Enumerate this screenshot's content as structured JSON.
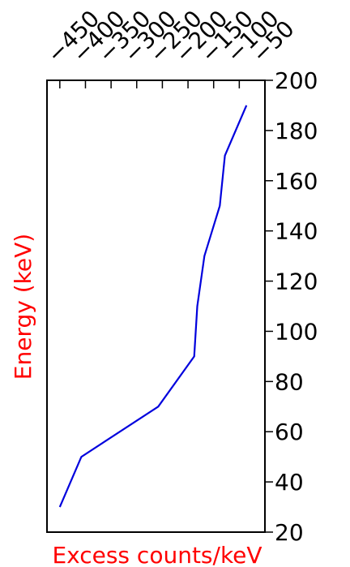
{
  "chart_data": {
    "type": "line",
    "xlabel": "Excess counts/keV",
    "ylabel": "Energy (keV)",
    "label_color": "#ff0000",
    "line_color": "#0000dd",
    "xlim": [
      -475,
      -50
    ],
    "ylim": [
      20,
      200
    ],
    "x_ticks": [
      "−450",
      "−400",
      "−350",
      "−300",
      "−250",
      "−200",
      "−150",
      "−100",
      "−50"
    ],
    "x_tick_values": [
      -450,
      -400,
      -350,
      -300,
      -250,
      -200,
      -150,
      -100,
      -50
    ],
    "y_ticks": [
      "200",
      "180",
      "160",
      "140",
      "120",
      "100",
      "80",
      "60",
      "40",
      "20"
    ],
    "y_tick_values": [
      200,
      180,
      160,
      140,
      120,
      100,
      80,
      60,
      40,
      20
    ],
    "x_axis_position": "top",
    "y_axis_position": "right",
    "grid": false,
    "series": [
      {
        "x": [
          -450,
          -408,
          -258,
          -188,
          -182,
          -168,
          -138,
          -128,
          -86
        ],
        "y": [
          30,
          50,
          70,
          90,
          110,
          130,
          150,
          170,
          190
        ]
      }
    ]
  }
}
